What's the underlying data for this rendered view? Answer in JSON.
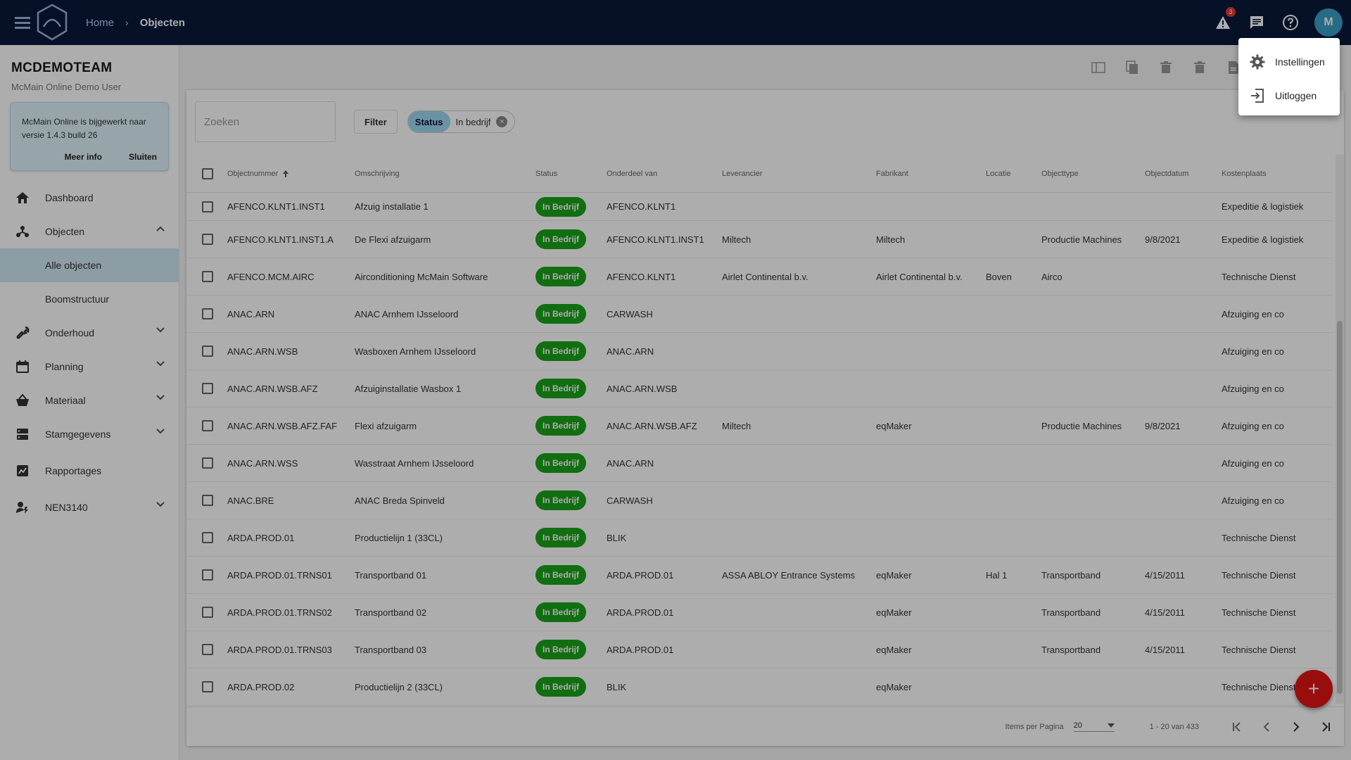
{
  "topbar": {
    "breadcrumb": [
      "Home",
      "Objecten"
    ],
    "notification_count": "3",
    "avatar_initial": "M"
  },
  "sidebar": {
    "team_name": "MCDEMOTEAM",
    "user_name": "McMain Online Demo User",
    "notice": {
      "text": "McMain Online is bijgewerkt naar versie 1.4.3 build 26",
      "more_label": "Meer info",
      "close_label": "Sluiten"
    },
    "items": [
      {
        "label": "Dashboard",
        "icon": "home-icon"
      },
      {
        "label": "Objecten",
        "icon": "objects-icon",
        "expanded": true
      },
      {
        "label": "Onderhoud",
        "icon": "wrench-icon"
      },
      {
        "label": "Planning",
        "icon": "calendar-icon"
      },
      {
        "label": "Materiaal",
        "icon": "basket-icon"
      },
      {
        "label": "Stamgegevens",
        "icon": "database-icon"
      },
      {
        "label": "Rapportages",
        "icon": "report-icon"
      },
      {
        "label": "NEN3140",
        "icon": "nen-icon"
      }
    ],
    "sub_items": [
      "Alle objecten",
      "Boomstructuur"
    ]
  },
  "search": {
    "placeholder": "Zoeken"
  },
  "filter": {
    "button_label": "Filter",
    "chip_key": "Status",
    "chip_value": "In bedrijf"
  },
  "table": {
    "headers": [
      "Objectnummer",
      "Omschrijving",
      "Status",
      "Onderdeel van",
      "Leverancier",
      "Fabrikant",
      "Locatie",
      "Objecttype",
      "Objectdatum",
      "Kostenplaats"
    ],
    "rows": [
      [
        "AFENCO.KLNT1.INST1",
        "Afzuig installatie 1",
        "In Bedrijf",
        "AFENCO.KLNT1",
        "",
        "",
        "",
        "",
        "",
        "Expeditie & logistiek"
      ],
      [
        "AFENCO.KLNT1.INST1.A",
        "De Flexi afzuigarm",
        "In Bedrijf",
        "AFENCO.KLNT1.INST1",
        "Miltech",
        "Miltech",
        "",
        "Productie Machines",
        "9/8/2021",
        "Expeditie & logistiek"
      ],
      [
        "AFENCO.MCM.AIRC",
        "Airconditioning McMain Software",
        "In Bedrijf",
        "AFENCO.KLNT1",
        "Airlet Continental b.v.",
        "Airlet Continental b.v.",
        "Boven",
        "Airco",
        "",
        "Technische Dienst"
      ],
      [
        "ANAC.ARN",
        "ANAC Arnhem IJsseloord",
        "In Bedrijf",
        "CARWASH",
        "",
        "",
        "",
        "",
        "",
        "Afzuiging en co"
      ],
      [
        "ANAC.ARN.WSB",
        "Wasboxen Arnhem IJsseloord",
        "In Bedrijf",
        "ANAC.ARN",
        "",
        "",
        "",
        "",
        "",
        "Afzuiging en co"
      ],
      [
        "ANAC.ARN.WSB.AFZ",
        "Afzuiginstallatie Wasbox 1",
        "In Bedrijf",
        "ANAC.ARN.WSB",
        "",
        "",
        "",
        "",
        "",
        "Afzuiging en co"
      ],
      [
        "ANAC.ARN.WSB.AFZ.FAF",
        "Flexi afzuigarm",
        "In Bedrijf",
        "ANAC.ARN.WSB.AFZ",
        "Miltech",
        "eqMaker",
        "",
        "Productie Machines",
        "9/8/2021",
        "Afzuiging en co"
      ],
      [
        "ANAC.ARN.WSS",
        "Wasstraat Arnhem IJsseloord",
        "In Bedrijf",
        "ANAC.ARN",
        "",
        "",
        "",
        "",
        "",
        "Afzuiging en co"
      ],
      [
        "ANAC.BRE",
        "ANAC Breda Spinveld",
        "In Bedrijf",
        "CARWASH",
        "",
        "",
        "",
        "",
        "",
        "Afzuiging en co"
      ],
      [
        "ARDA.PROD.01",
        "Productielijn 1 (33CL)",
        "In Bedrijf",
        "BLIK",
        "",
        "",
        "",
        "",
        "",
        "Technische Dienst"
      ],
      [
        "ARDA.PROD.01.TRNS01",
        "Transportband 01",
        "In Bedrijf",
        "ARDA.PROD.01",
        "ASSA ABLOY Entrance Systems",
        "eqMaker",
        "Hal 1",
        "Transportband",
        "4/15/2011",
        "Technische Dienst"
      ],
      [
        "ARDA.PROD.01.TRNS02",
        "Transportband 02",
        "In Bedrijf",
        "ARDA.PROD.01",
        "",
        "eqMaker",
        "",
        "Transportband",
        "4/15/2011",
        "Technische Dienst"
      ],
      [
        "ARDA.PROD.01.TRNS03",
        "Transportband 03",
        "In Bedrijf",
        "ARDA.PROD.01",
        "",
        "eqMaker",
        "",
        "Transportband",
        "4/15/2011",
        "Technische Dienst"
      ],
      [
        "ARDA.PROD.02",
        "Productielijn 2 (33CL)",
        "In Bedrijf",
        "BLIK",
        "",
        "eqMaker",
        "",
        "",
        "",
        "Technische Dienst"
      ]
    ]
  },
  "pagination": {
    "items_per_page_label": "Items per Pagina",
    "items_per_page": "20",
    "range": "1 - 20 van 433"
  },
  "fab_label": "+",
  "user_menu": {
    "items": [
      {
        "label": "Instellingen",
        "icon": "gear-icon"
      },
      {
        "label": "Uitloggen",
        "icon": "logout-icon"
      }
    ]
  },
  "colors": {
    "topbar": "#0a1a3a",
    "status_green": "#1aa31a",
    "accent_blue": "#3aa0c8",
    "fab_red": "#e21414"
  }
}
